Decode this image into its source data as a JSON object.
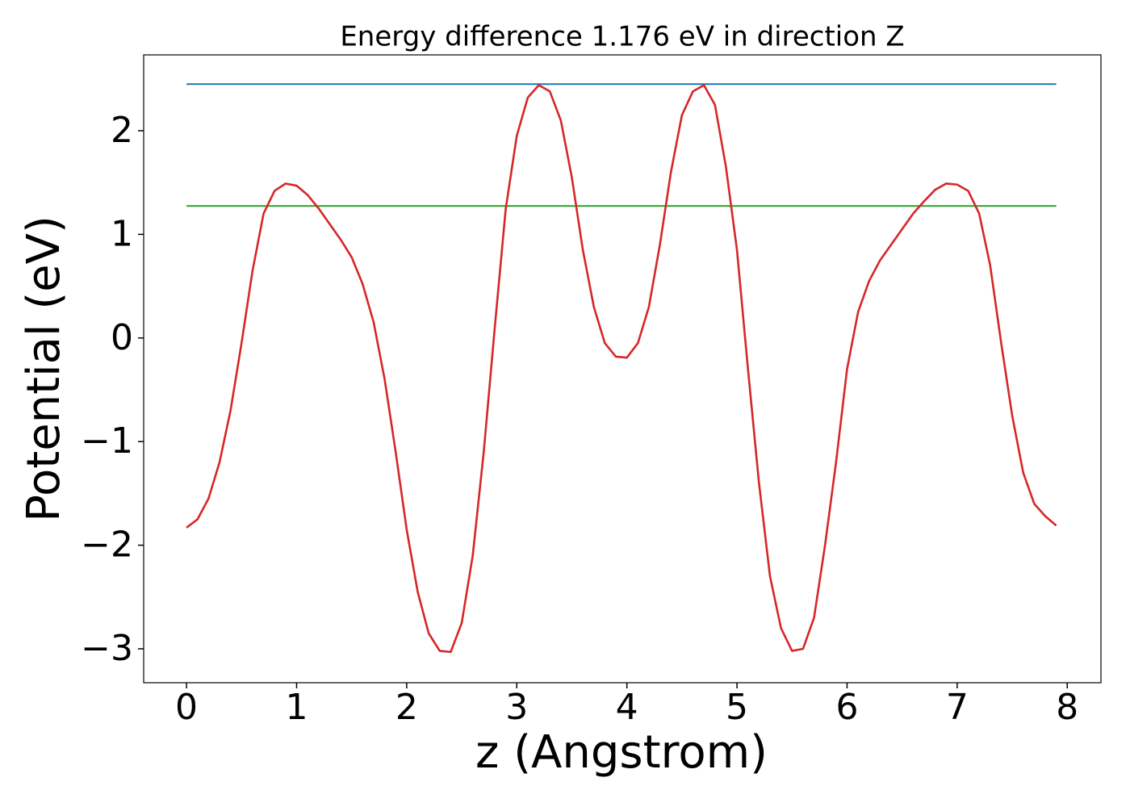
{
  "chart_data": {
    "type": "line",
    "title": "Energy difference 1.176 eV in direction Z",
    "xlabel": "z (Angstrom)",
    "ylabel": "Potential (eV)",
    "xlim": [
      -0.389,
      8.306
    ],
    "ylim": [
      -3.327,
      2.732
    ],
    "xticks": [
      0,
      1,
      2,
      3,
      4,
      5,
      6,
      7,
      8
    ],
    "yticks": [
      {
        "value": -3,
        "label": "−3"
      },
      {
        "value": -2,
        "label": "−2"
      },
      {
        "value": -1,
        "label": "−1"
      },
      0,
      1,
      2
    ],
    "grid": false,
    "series": [
      {
        "color": "#1f77b4",
        "x": [
          0,
          7.9
        ],
        "values": [
          2.45,
          2.45
        ]
      },
      {
        "color": "#2ca02c",
        "x": [
          0,
          7.9
        ],
        "values": [
          1.274,
          1.274
        ]
      },
      {
        "color": "#d62728",
        "x": [
          0,
          0.1,
          0.2,
          0.3,
          0.4,
          0.5,
          0.6,
          0.7,
          0.8,
          0.9,
          1.0,
          1.1,
          1.2,
          1.3,
          1.4,
          1.5,
          1.6,
          1.7,
          1.8,
          1.9,
          2.0,
          2.1,
          2.2,
          2.3,
          2.4,
          2.5,
          2.6,
          2.7,
          2.8,
          2.9,
          3.0,
          3.1,
          3.2,
          3.3,
          3.4,
          3.5,
          3.6,
          3.7,
          3.8,
          3.9,
          4.0,
          4.1,
          4.2,
          4.3,
          4.4,
          4.5,
          4.6,
          4.7,
          4.8,
          4.9,
          5.0,
          5.1,
          5.2,
          5.3,
          5.4,
          5.5,
          5.6,
          5.7,
          5.8,
          5.9,
          6.0,
          6.1,
          6.2,
          6.3,
          6.4,
          6.5,
          6.6,
          6.7,
          6.8,
          6.9,
          7.0,
          7.1,
          7.2,
          7.3,
          7.4,
          7.5,
          7.6,
          7.7,
          7.8,
          7.9
        ],
        "values": [
          -1.83,
          -1.75,
          -1.55,
          -1.2,
          -0.7,
          -0.05,
          0.65,
          1.2,
          1.42,
          1.49,
          1.47,
          1.38,
          1.25,
          1.1,
          0.95,
          0.78,
          0.52,
          0.15,
          -0.4,
          -1.1,
          -1.85,
          -2.45,
          -2.85,
          -3.02,
          -3.03,
          -2.75,
          -2.1,
          -1.1,
          0.1,
          1.25,
          1.95,
          2.32,
          2.44,
          2.38,
          2.1,
          1.55,
          0.85,
          0.3,
          -0.05,
          -0.18,
          -0.19,
          -0.05,
          0.3,
          0.9,
          1.6,
          2.15,
          2.38,
          2.44,
          2.25,
          1.65,
          0.85,
          -0.3,
          -1.4,
          -2.3,
          -2.8,
          -3.02,
          -3.0,
          -2.7,
          -2.0,
          -1.2,
          -0.3,
          0.25,
          0.55,
          0.75,
          0.9,
          1.05,
          1.2,
          1.32,
          1.43,
          1.49,
          1.48,
          1.42,
          1.2,
          0.7,
          -0.05,
          -0.75,
          -1.3,
          -1.6,
          -1.72,
          -1.81
        ]
      }
    ]
  }
}
